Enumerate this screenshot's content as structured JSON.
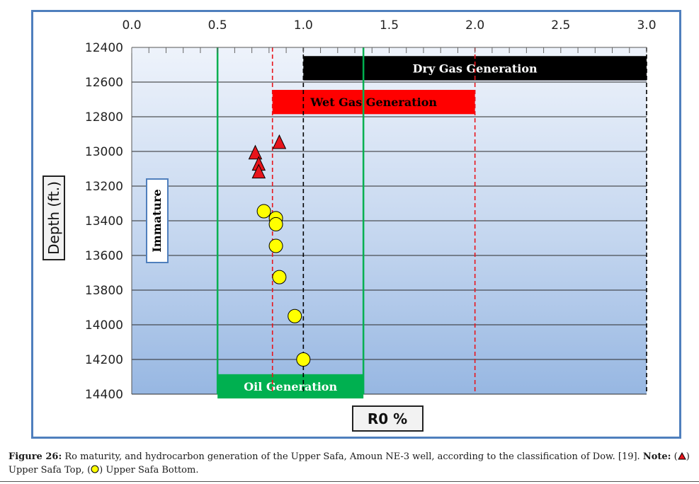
{
  "chart_data": {
    "type": "scatter",
    "xlabel": "R0 %",
    "ylabel": "Depth (ft.)",
    "xlim": [
      0.0,
      3.0
    ],
    "ylim": [
      12400,
      14400
    ],
    "x_ticks": [
      "0.0",
      "0.5",
      "1.0",
      "1.5",
      "2.0",
      "2.5",
      "3.0"
    ],
    "y_ticks": [
      "12400",
      "12600",
      "12800",
      "13000",
      "13200",
      "13400",
      "13600",
      "13800",
      "14000",
      "14200",
      "14400"
    ],
    "x_axis_position": "top",
    "y_axis_reversed": true,
    "grid": "horizontal",
    "series": [
      {
        "marker": "triangle",
        "color": "#e8141b",
        "points": [
          {
            "x": 0.86,
            "y": 12945
          },
          {
            "x": 0.72,
            "y": 13005
          },
          {
            "x": 0.74,
            "y": 13070
          },
          {
            "x": 0.74,
            "y": 13115
          }
        ]
      },
      {
        "marker": "circle",
        "color": "#ffff00",
        "points": [
          {
            "x": 0.77,
            "y": 13345
          },
          {
            "x": 0.84,
            "y": 13385
          },
          {
            "x": 0.84,
            "y": 13420
          },
          {
            "x": 0.84,
            "y": 13545
          },
          {
            "x": 0.86,
            "y": 13725
          },
          {
            "x": 0.95,
            "y": 13950
          },
          {
            "x": 1.0,
            "y": 14200
          }
        ]
      }
    ],
    "bands": [
      {
        "label": "Dry Gas Generation",
        "x_start": 1.0,
        "x_end": 3.0,
        "y_top": 12450,
        "y_bottom": 12590,
        "fill": "#000000",
        "text_color": "#ffffff"
      },
      {
        "label": "Wet Gas Generation",
        "x_start": 0.82,
        "x_end": 2.0,
        "y_top": 12645,
        "y_bottom": 12785,
        "fill": "#ff0000",
        "text_color": "#000000"
      },
      {
        "label": "Oil Generation",
        "x_start": 0.5,
        "x_end": 1.35,
        "y_top": 14285,
        "y_bottom": 14425,
        "fill": "#00b050",
        "text_color": "#ffffff"
      }
    ],
    "vertical_lines": [
      {
        "x": 0.5,
        "color": "#00b050",
        "style": "solid"
      },
      {
        "x": 1.35,
        "color": "#00b050",
        "style": "solid"
      },
      {
        "x": 0.82,
        "color": "#e8141b",
        "style": "dashed"
      },
      {
        "x": 2.0,
        "color": "#e8141b",
        "style": "dashed"
      },
      {
        "x": 1.0,
        "color": "#000000",
        "style": "dashed"
      },
      {
        "x": 3.0,
        "color": "#000000",
        "style": "dashed"
      }
    ],
    "annotations": [
      {
        "text": "Immature",
        "orientation": "vertical"
      }
    ]
  },
  "caption": {
    "label": "Figure 26:",
    "text": " Ro maturity, and hydrocarbon generation of the Upper Safa, Amoun NE-3 well, according to the classification of Dow. [19]. ",
    "note_label": "Note:",
    "note_open": " (",
    "top_text": ") Upper Safa Top, (",
    "bottom_text": ") Upper Safa Bottom."
  }
}
